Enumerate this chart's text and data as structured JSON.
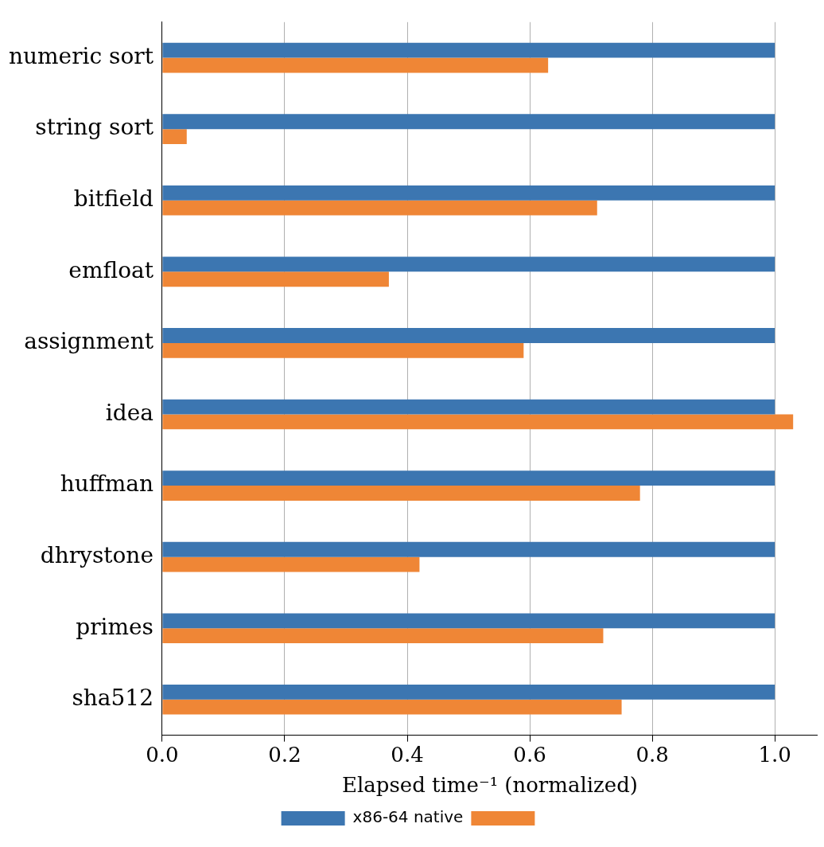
{
  "chart_data": {
    "type": "bar",
    "orientation": "horizontal",
    "xlabel": "Elapsed time⁻¹ (normalized)",
    "categories": [
      "numeric sort",
      "string sort",
      "bitfield",
      "emfloat",
      "assignment",
      "idea",
      "huffman",
      "dhrystone",
      "primes",
      "sha512"
    ],
    "series": [
      {
        "name": "x86-64 native",
        "color": "#3c76b1",
        "values": [
          1.0,
          1.0,
          1.0,
          1.0,
          1.0,
          1.0,
          1.0,
          1.0,
          1.0,
          1.0
        ]
      },
      {
        "color": "#ef8636",
        "values": [
          0.63,
          0.04,
          0.71,
          0.37,
          0.59,
          1.03,
          0.78,
          0.42,
          0.72,
          0.75
        ]
      }
    ],
    "xlim": [
      0,
      1.07
    ],
    "xticks": [
      {
        "value": 0,
        "label": "0.0"
      },
      {
        "value": 0.2,
        "label": "0.2"
      },
      {
        "value": 0.4,
        "label": "0.4"
      },
      {
        "value": 0.6,
        "label": "0.6"
      },
      {
        "value": 0.8,
        "label": "0.8"
      },
      {
        "value": 1.0,
        "label": "1.0"
      }
    ],
    "grid": "x",
    "legend": "bottom"
  }
}
